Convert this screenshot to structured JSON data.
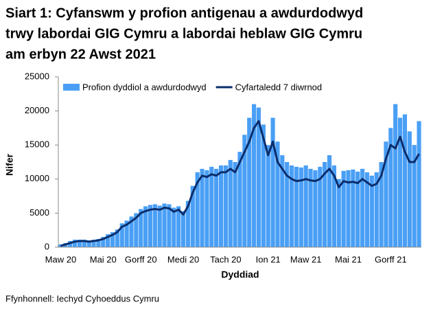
{
  "chart_data": {
    "type": "bar_line",
    "title": [
      "Siart 1: Cyfanswm y profion antigenau a awdurdodwyd",
      "trwy labordai GIG Cymru a labordai heblaw GIG Cymru",
      "am erbyn 22 Awst 2021"
    ],
    "x_label": "Dyddiad",
    "y_label": "Nifer",
    "source": "Ffynhonnell: Iechyd Cyhoeddus Cymru",
    "categories": [
      "Maw 20",
      null,
      null,
      null,
      null,
      null,
      null,
      null,
      null,
      "Mai 20",
      null,
      null,
      null,
      null,
      null,
      null,
      null,
      "Gorff 20",
      null,
      null,
      null,
      null,
      null,
      null,
      null,
      null,
      "Medi 20",
      null,
      null,
      null,
      null,
      null,
      null,
      null,
      null,
      "Tach 20",
      null,
      null,
      null,
      null,
      null,
      null,
      null,
      null,
      "Ion 21",
      null,
      null,
      null,
      null,
      null,
      null,
      null,
      "Maw 21",
      null,
      null,
      null,
      null,
      null,
      null,
      null,
      null,
      "Mai 21",
      null,
      null,
      null,
      null,
      null,
      null,
      null,
      null,
      "Gorff 21",
      null,
      null,
      null,
      null,
      null,
      null
    ],
    "series": [
      {
        "name": "Profion dyddiol a awdurdodwyd",
        "kind": "bar",
        "color": "#4a9ff5",
        "values": [
          400,
          600,
          900,
          1100,
          1100,
          1100,
          1000,
          1100,
          1200,
          1500,
          1900,
          2200,
          2600,
          3500,
          3900,
          4500,
          5000,
          5600,
          6000,
          6200,
          6300,
          6100,
          6400,
          6300,
          5800,
          6000,
          5300,
          6800,
          9000,
          11000,
          11500,
          11300,
          11800,
          11500,
          12000,
          12000,
          12800,
          12500,
          14000,
          16500,
          19000,
          21000,
          20500,
          18000,
          15000,
          19000,
          15500,
          13500,
          12500,
          12000,
          11800,
          11700,
          12000,
          11500,
          11300,
          11800,
          12500,
          13500,
          12000,
          10000,
          11200,
          11300,
          11400,
          11100,
          11500,
          11000,
          10500,
          11000,
          12500,
          15500,
          17500,
          21000,
          19000,
          19500,
          17000,
          15000,
          18500
        ]
      },
      {
        "name": "Cyfartaledd 7 diwrnod",
        "kind": "line",
        "color": "#0b2d6b",
        "values": [
          200,
          400,
          600,
          800,
          900,
          900,
          800,
          900,
          1000,
          1200,
          1500,
          1800,
          2200,
          3000,
          3300,
          3800,
          4300,
          5000,
          5300,
          5500,
          5600,
          5500,
          5800,
          5700,
          5200,
          5500,
          4800,
          6000,
          8000,
          9500,
          10500,
          10300,
          10700,
          10500,
          11000,
          11000,
          11500,
          11000,
          12500,
          14000,
          15500,
          17500,
          18500,
          16000,
          13500,
          15500,
          12500,
          11500,
          10500,
          10000,
          9700,
          9800,
          10000,
          9800,
          9700,
          10000,
          10800,
          11500,
          10500,
          8800,
          9700,
          9500,
          9600,
          9400,
          10000,
          9500,
          9000,
          9300,
          10500,
          13000,
          15000,
          14500,
          16200,
          14000,
          12500,
          12500,
          13700
        ]
      }
    ],
    "ylim": [
      0,
      25000
    ],
    "yticks": [
      0,
      5000,
      10000,
      15000,
      20000,
      25000
    ],
    "grid": false
  }
}
